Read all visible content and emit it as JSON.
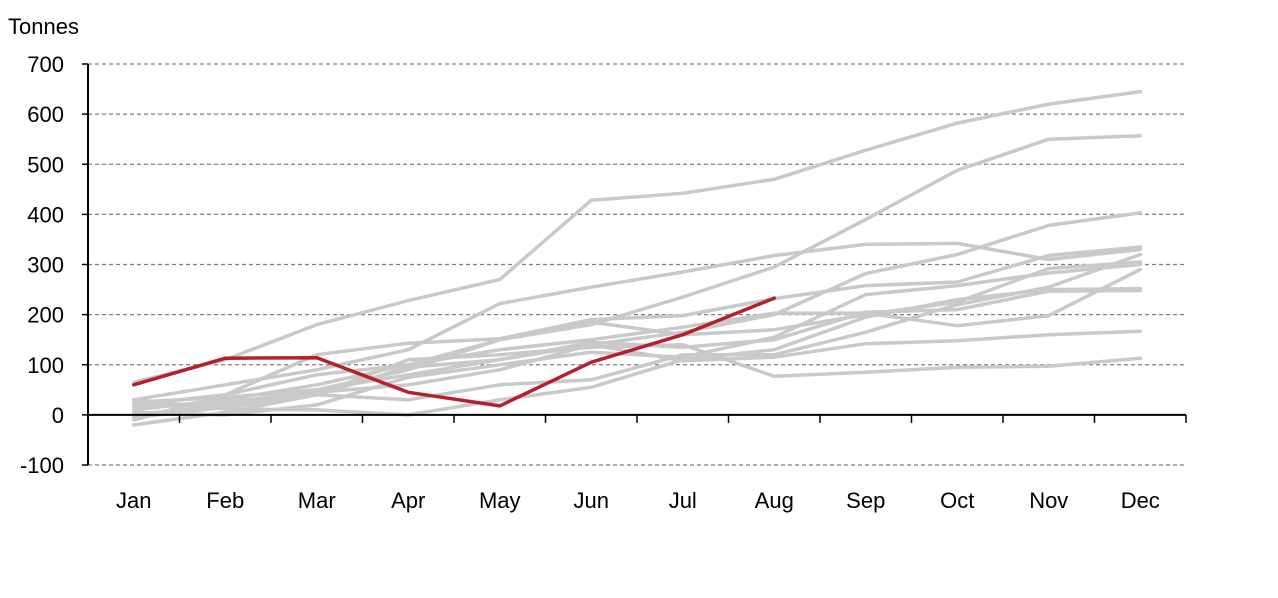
{
  "chart_data": {
    "type": "line",
    "title": "",
    "ylabel": "Tonnes",
    "xlabel": "",
    "categories": [
      "Jan",
      "Feb",
      "Mar",
      "Apr",
      "May",
      "Jun",
      "Jul",
      "Aug",
      "Sep",
      "Oct",
      "Nov",
      "Dec"
    ],
    "ylim": [
      -100,
      700
    ],
    "yticks": [
      -100,
      0,
      100,
      200,
      300,
      400,
      500,
      600,
      700
    ],
    "grid": true,
    "legend": "none",
    "colors": {
      "highlight": "#b5202e",
      "history": "#c9c9c9",
      "grid": "#808080",
      "axis": "#000000"
    },
    "highlight_series": {
      "values": [
        60,
        113,
        114,
        45,
        18,
        105,
        160,
        233
      ]
    },
    "history_series": [
      {
        "values": [
          65,
          110,
          180,
          228,
          270,
          428,
          442,
          470,
          528,
          582,
          620,
          645
        ]
      },
      {
        "values": [
          30,
          60,
          90,
          130,
          222,
          255,
          285,
          318,
          340,
          342,
          310,
          330
        ]
      },
      {
        "values": [
          20,
          40,
          80,
          100,
          150,
          180,
          235,
          295,
          390,
          488,
          550,
          557
        ]
      },
      {
        "values": [
          0,
          20,
          50,
          80,
          110,
          140,
          165,
          200,
          282,
          320,
          378,
          403
        ]
      },
      {
        "values": [
          -10,
          40,
          120,
          143,
          152,
          190,
          198,
          232,
          258,
          265,
          318,
          335
        ]
      },
      {
        "values": [
          10,
          30,
          60,
          100,
          130,
          150,
          175,
          203,
          203,
          178,
          198,
          290
        ]
      },
      {
        "values": [
          15,
          25,
          45,
          60,
          90,
          140,
          108,
          115,
          142,
          148,
          160,
          167
        ]
      },
      {
        "values": [
          -20,
          5,
          40,
          110,
          120,
          135,
          140,
          77,
          85,
          95,
          97,
          113
        ]
      },
      {
        "values": [
          25,
          35,
          50,
          90,
          150,
          185,
          160,
          170,
          200,
          225,
          292,
          305
        ]
      },
      {
        "values": [
          5,
          0,
          20,
          75,
          100,
          125,
          115,
          155,
          240,
          258,
          283,
          300
        ]
      },
      {
        "values": [
          -5,
          15,
          40,
          95,
          110,
          145,
          135,
          150,
          205,
          210,
          247,
          248
        ]
      },
      {
        "values": [
          20,
          20,
          40,
          30,
          60,
          70,
          120,
          120,
          165,
          220,
          255,
          320
        ]
      },
      {
        "values": [
          30,
          12,
          10,
          0,
          30,
          55,
          110,
          130,
          195,
          230,
          250,
          252
        ]
      }
    ]
  }
}
